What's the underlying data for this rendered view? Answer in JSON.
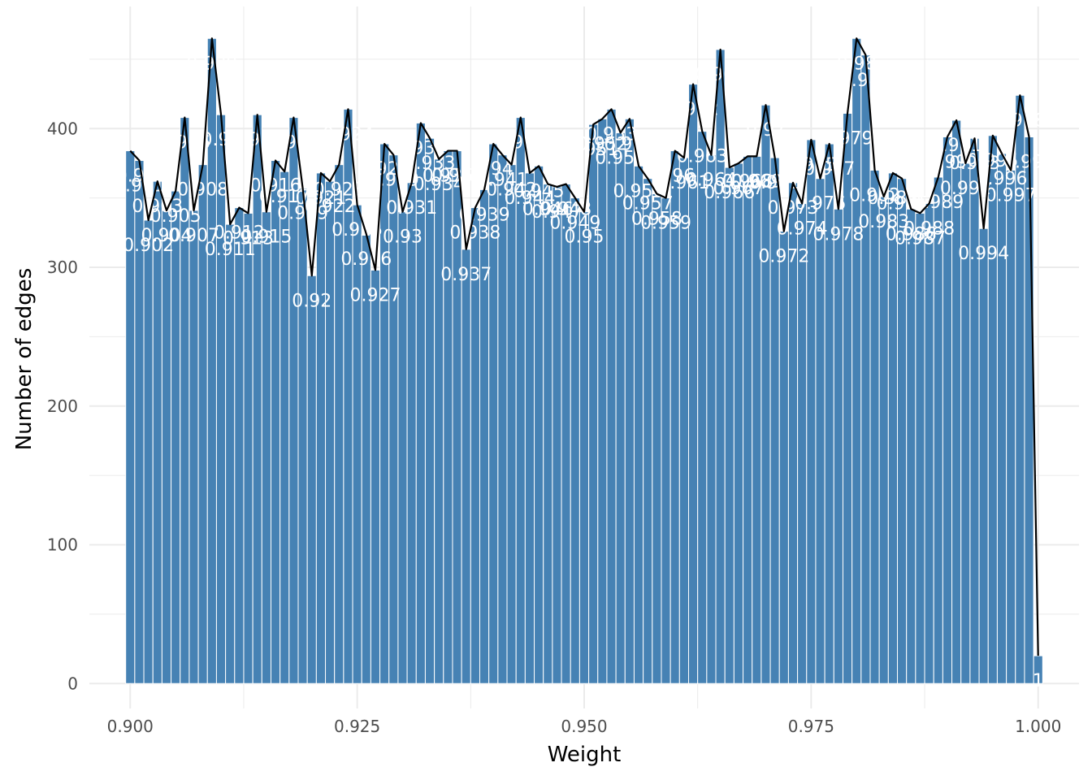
{
  "chart_data": {
    "type": "bar",
    "xlabel": "Weight",
    "ylabel": "Number of edges",
    "xlim": [
      0.8955,
      1.0045
    ],
    "ylim": [
      -18,
      488
    ],
    "x_ticks": [
      "0.900",
      "0.925",
      "0.950",
      "0.975",
      "1.000"
    ],
    "x_tick_values": [
      0.9,
      0.925,
      0.95,
      0.975,
      1.0
    ],
    "y_ticks": [
      "0",
      "100",
      "200",
      "300",
      "400"
    ],
    "y_tick_values": [
      0,
      100,
      200,
      300,
      400
    ],
    "grid": true,
    "colors": {
      "bar": "#4682b4",
      "line": "#000000",
      "label": "#ffffff",
      "grid": "#ebebeb"
    },
    "x": [
      0.9,
      0.901,
      0.902,
      0.903,
      0.904,
      0.905,
      0.906,
      0.907,
      0.908,
      0.909,
      0.91,
      0.911,
      0.912,
      0.913,
      0.914,
      0.915,
      0.916,
      0.917,
      0.918,
      0.919,
      0.92,
      0.921,
      0.922,
      0.923,
      0.924,
      0.925,
      0.926,
      0.927,
      0.928,
      0.929,
      0.93,
      0.931,
      0.932,
      0.933,
      0.934,
      0.935,
      0.936,
      0.937,
      0.938,
      0.939,
      0.94,
      0.941,
      0.942,
      0.943,
      0.944,
      0.945,
      0.946,
      0.947,
      0.948,
      0.949,
      0.95,
      0.951,
      0.952,
      0.953,
      0.954,
      0.955,
      0.956,
      0.957,
      0.958,
      0.959,
      0.96,
      0.961,
      0.962,
      0.963,
      0.964,
      0.965,
      0.966,
      0.967,
      0.968,
      0.969,
      0.97,
      0.971,
      0.972,
      0.973,
      0.974,
      0.975,
      0.976,
      0.977,
      0.978,
      0.979,
      0.98,
      0.981,
      0.982,
      0.983,
      0.984,
      0.985,
      0.986,
      0.987,
      0.988,
      0.989,
      0.99,
      0.991,
      0.992,
      0.993,
      0.994,
      0.995,
      0.996,
      0.997,
      0.998,
      0.999,
      1.0
    ],
    "labels": [
      "0.9",
      "0.901",
      "0.902",
      "0.903",
      "0.904",
      "0.905",
      "0.906",
      "0.907",
      "0.908",
      "0.909",
      "0.91",
      "0.911",
      "0.912",
      "0.913",
      "0.914",
      "0.915",
      "0.916",
      "0.917",
      "0.918",
      "0.919",
      "0.92",
      "0.921",
      "0.922",
      "0.923",
      "0.924",
      "0.925",
      "0.926",
      "0.927",
      "0.928",
      "0.929",
      "0.93",
      "0.931",
      "0.932",
      "0.933",
      "0.934",
      "0.935",
      "0.936",
      "0.937",
      "0.938",
      "0.939",
      "0.94",
      "0.941",
      "0.942",
      "0.943",
      "0.944",
      "0.945",
      "0.946",
      "0.947",
      "0.948",
      "0.949",
      "0.95",
      "0.951",
      "0.952",
      "0.953",
      "0.954",
      "0.955",
      "0.956",
      "0.957",
      "0.958",
      "0.959",
      "0.96",
      "0.961",
      "0.962",
      "0.963",
      "0.964",
      "0.965",
      "0.966",
      "0.967",
      "0.968",
      "0.969",
      "0.97",
      "0.971",
      "0.972",
      "0.973",
      "0.974",
      "0.975",
      "0.976",
      "0.977",
      "0.978",
      "0.979",
      "0.98",
      "0.981",
      "0.982",
      "0.983",
      "0.984",
      "0.985",
      "0.986",
      "0.987",
      "0.988",
      "0.989",
      "0.99",
      "0.991",
      "0.992",
      "0.993",
      "0.994",
      "0.995",
      "0.996",
      "0.997",
      "0.998",
      "0.999",
      "1"
    ],
    "values": [
      384,
      377,
      334,
      362,
      341,
      355,
      408,
      341,
      374,
      465,
      410,
      331,
      343,
      339,
      410,
      340,
      377,
      369,
      408,
      357,
      294,
      368,
      362,
      374,
      414,
      345,
      324,
      298,
      389,
      381,
      340,
      361,
      404,
      393,
      378,
      384,
      384,
      313,
      343,
      356,
      389,
      381,
      374,
      408,
      368,
      373,
      360,
      358,
      360,
      350,
      340,
      403,
      407,
      414,
      397,
      407,
      373,
      364,
      353,
      350,
      384,
      379,
      432,
      398,
      381,
      457,
      372,
      375,
      380,
      380,
      417,
      379,
      326,
      361,
      346,
      392,
      364,
      389,
      342,
      411,
      465,
      453,
      370,
      351,
      368,
      364,
      342,
      339,
      346,
      365,
      394,
      406,
      375,
      393,
      328,
      395,
      382,
      370,
      424,
      394,
      20
    ]
  }
}
